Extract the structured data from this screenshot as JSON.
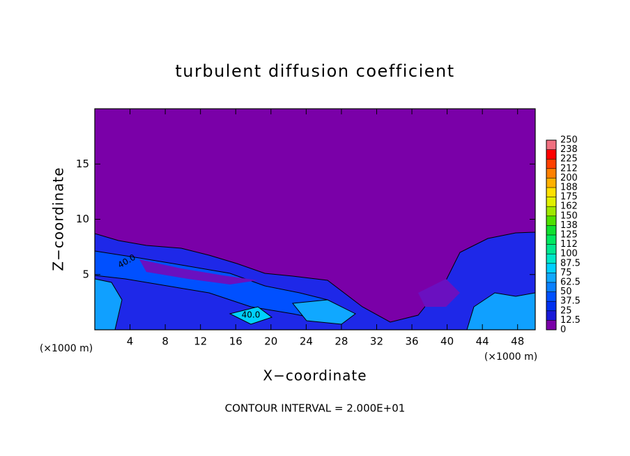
{
  "chart_data": {
    "type": "contour",
    "title": "turbulent diffusion coefficient",
    "xlabel": "X−coordinate",
    "ylabel": "Z−coordinate",
    "x_unit_label": "(×1000 m)",
    "y_unit_label": "(×1000 m)",
    "footer": "CONTOUR INTERVAL = 2.000E+01",
    "contour_labels": [
      "40.0",
      "40.0"
    ],
    "xlim": [
      0,
      50
    ],
    "xticks": [
      4,
      8,
      12,
      16,
      20,
      24,
      28,
      32,
      36,
      40,
      44,
      48
    ],
    "ylim": [
      0,
      20
    ],
    "yticks": [
      5,
      10,
      15
    ],
    "colorbar": {
      "levels": [
        0,
        12.5,
        25,
        37.5,
        50,
        62.5,
        75,
        87.5,
        100,
        {
          "value": 112.5,
          "label": "112"
        },
        125,
        {
          "value": 137.5,
          "label": "138"
        },
        150,
        {
          "value": 162.5,
          "label": "162"
        },
        175,
        {
          "value": 187.5,
          "label": "188"
        },
        200,
        {
          "value": 212.5,
          "label": "212"
        },
        225,
        {
          "value": 237.5,
          "label": "238"
        },
        250
      ],
      "colors": [
        "#7a00a8",
        "#1a1ad8",
        "#0030f0",
        "#0050ff",
        "#0a80ff",
        "#10a8ff",
        "#00d0ff",
        "#00e8c8",
        "#00e890",
        "#00e860",
        "#10e030",
        "#50e000",
        "#a0e800",
        "#e0f000",
        "#ffe000",
        "#ffb000",
        "#ff8000",
        "#ff4000",
        "#ff0000",
        "#f07080"
      ]
    }
  }
}
